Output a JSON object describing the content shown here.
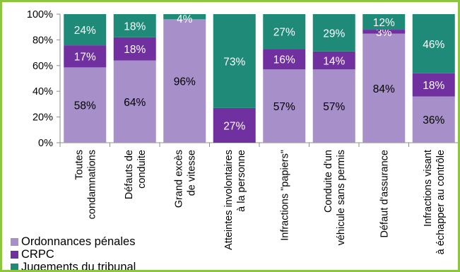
{
  "chart_data": {
    "type": "bar",
    "stacked": true,
    "percent_stacked": true,
    "categories": [
      [
        "Toutes",
        "condamnations"
      ],
      [
        "Défauts de",
        "conduite"
      ],
      [
        "Grand excès",
        "de vitesse"
      ],
      [
        "Atteintes involontaires",
        "à la personne"
      ],
      [
        "Infractions \"papiers\""
      ],
      [
        "Conduite d'un",
        "véhicule sans permis"
      ],
      [
        "Défaut d'assurance"
      ],
      [
        "Infractions visant",
        "à échapper au contrôle"
      ]
    ],
    "series": [
      {
        "name": "Ordonnances pénales",
        "color": "#a78fc9",
        "values": [
          58,
          64,
          96,
          0,
          57,
          57,
          84,
          36
        ],
        "labels": [
          "58%",
          "64%",
          "96%",
          "",
          "57%",
          "57%",
          "84%",
          "36%"
        ]
      },
      {
        "name": "CRPC",
        "color": "#7030a0",
        "values": [
          17,
          18,
          0,
          27,
          16,
          14,
          3,
          18
        ],
        "labels": [
          "17%",
          "18%",
          "",
          "27%",
          "16%",
          "14%",
          "3%",
          "18%"
        ]
      },
      {
        "name": "Jugements du tribunal",
        "color": "#1f8a78",
        "values": [
          24,
          18,
          4,
          73,
          27,
          29,
          12,
          46
        ],
        "labels": [
          "24%",
          "18%",
          "4%",
          "73%",
          "27%",
          "29%",
          "12%",
          "46%"
        ]
      }
    ],
    "ylim": [
      0,
      100
    ],
    "yticks": [
      "0%",
      "20%",
      "40%",
      "60%",
      "80%",
      "100%"
    ],
    "grid": false,
    "legend_position": "bottom-left",
    "title": "",
    "xlabel": "",
    "ylabel": ""
  }
}
